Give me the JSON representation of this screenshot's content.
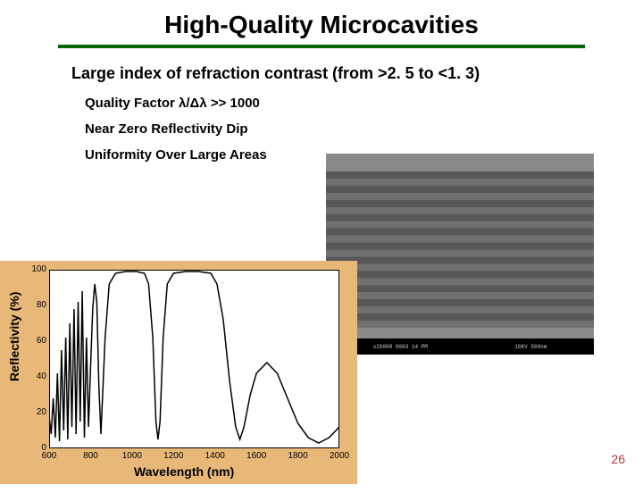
{
  "title": "High-Quality Microcavities",
  "title_color": "#000000",
  "underline_color": "#006600",
  "subtitle": "Large index of refraction contrast (from >2. 5 to <1. 3)",
  "bullets": [
    "Quality Factor  λ/Δλ >> 1000",
    "Near Zero Reflectivity Dip",
    "Uniformity Over Large Areas"
  ],
  "chart": {
    "bg_color": "#e8b878",
    "plot_bg": "#ffffff",
    "line_color": "#000000",
    "xlabel": "Wavelength (nm)",
    "ylabel": "Reflectivity (%)",
    "xlim": [
      600,
      2000
    ],
    "ylim": [
      0,
      100
    ],
    "xticks": [
      600,
      800,
      1000,
      1200,
      1400,
      1600,
      1800,
      2000
    ],
    "yticks": [
      0,
      20,
      40,
      60,
      80,
      100
    ],
    "data": [
      [
        600,
        18
      ],
      [
        610,
        8
      ],
      [
        620,
        28
      ],
      [
        630,
        6
      ],
      [
        640,
        42
      ],
      [
        650,
        4
      ],
      [
        660,
        55
      ],
      [
        670,
        10
      ],
      [
        680,
        62
      ],
      [
        690,
        5
      ],
      [
        700,
        70
      ],
      [
        710,
        12
      ],
      [
        720,
        78
      ],
      [
        730,
        8
      ],
      [
        740,
        82
      ],
      [
        750,
        15
      ],
      [
        760,
        88
      ],
      [
        770,
        6
      ],
      [
        780,
        62
      ],
      [
        790,
        12
      ],
      [
        800,
        45
      ],
      [
        810,
        78
      ],
      [
        820,
        92
      ],
      [
        830,
        82
      ],
      [
        840,
        35
      ],
      [
        850,
        8
      ],
      [
        870,
        62
      ],
      [
        890,
        92
      ],
      [
        920,
        98
      ],
      [
        970,
        99
      ],
      [
        1020,
        99
      ],
      [
        1060,
        98
      ],
      [
        1080,
        92
      ],
      [
        1100,
        62
      ],
      [
        1115,
        15
      ],
      [
        1125,
        5
      ],
      [
        1135,
        15
      ],
      [
        1150,
        62
      ],
      [
        1170,
        92
      ],
      [
        1200,
        98
      ],
      [
        1260,
        99
      ],
      [
        1320,
        99
      ],
      [
        1380,
        98
      ],
      [
        1410,
        92
      ],
      [
        1440,
        72
      ],
      [
        1470,
        38
      ],
      [
        1500,
        12
      ],
      [
        1520,
        5
      ],
      [
        1540,
        12
      ],
      [
        1570,
        30
      ],
      [
        1600,
        42
      ],
      [
        1650,
        48
      ],
      [
        1700,
        42
      ],
      [
        1750,
        28
      ],
      [
        1800,
        14
      ],
      [
        1850,
        6
      ],
      [
        1900,
        3
      ],
      [
        1950,
        6
      ],
      [
        2000,
        12
      ]
    ]
  },
  "sem": {
    "top_color": "#8a8a8a",
    "layer_color_1": "#585858",
    "layer_color_2": "#707070",
    "num_layers": 22,
    "info_left": "x20000  0003  14 PM",
    "info_right": "10KV  500nm"
  },
  "page_number": "26",
  "page_number_color": "#cc3333"
}
